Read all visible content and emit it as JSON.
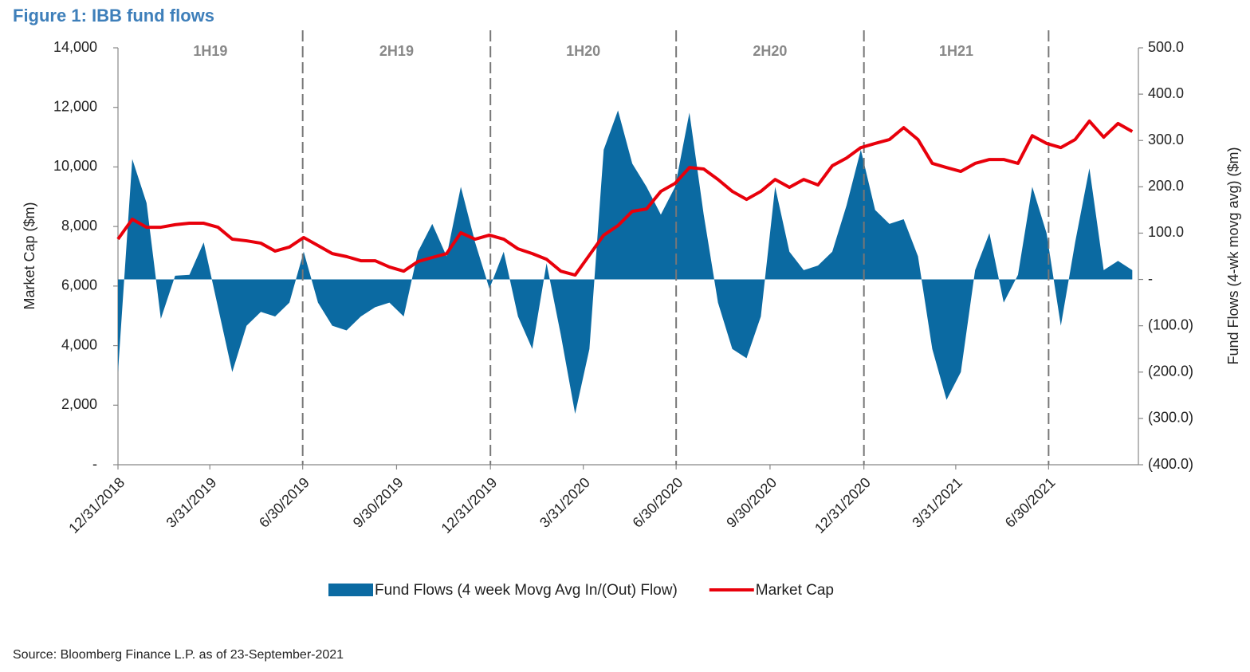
{
  "chart_data": {
    "type": "area-line",
    "title": "Figure 1: IBB fund flows",
    "source": "Source: Bloomberg Finance L.P. as of 23-September-2021",
    "y_label": "Market Cap ($m)",
    "y2_label": "Fund Flows (4-wk movg avg) ($m)",
    "xlim": [
      0,
      1000
    ],
    "xticks": [
      {
        "value": 0,
        "label": "12/31/2018"
      },
      {
        "value": 90,
        "label": "3/31/2019"
      },
      {
        "value": 181,
        "label": "6/30/2019"
      },
      {
        "value": 273,
        "label": "9/30/2019"
      },
      {
        "value": 365,
        "label": "12/31/2019"
      },
      {
        "value": 456,
        "label": "3/31/2020"
      },
      {
        "value": 547,
        "label": "6/30/2020"
      },
      {
        "value": 639,
        "label": "9/30/2020"
      },
      {
        "value": 731,
        "label": "12/31/2020"
      },
      {
        "value": 821,
        "label": "3/31/2021"
      },
      {
        "value": 912,
        "label": "6/30/2021"
      }
    ],
    "ylim": [
      0,
      14000
    ],
    "yticks": [
      {
        "value": 0,
        "label": "-"
      },
      {
        "value": 2000,
        "label": "2,000"
      },
      {
        "value": 4000,
        "label": "4,000"
      },
      {
        "value": 6000,
        "label": "6,000"
      },
      {
        "value": 8000,
        "label": "8,000"
      },
      {
        "value": 10000,
        "label": "10,000"
      },
      {
        "value": 12000,
        "label": "12,000"
      },
      {
        "value": 14000,
        "label": "14,000"
      }
    ],
    "y2lim": [
      -400,
      500
    ],
    "y2ticks": [
      {
        "value": -400,
        "label": "(400.0)"
      },
      {
        "value": -300,
        "label": "(300.0)"
      },
      {
        "value": -200,
        "label": "(200.0)"
      },
      {
        "value": -100,
        "label": "(100.0)"
      },
      {
        "value": 0,
        "label": "-"
      },
      {
        "value": 100,
        "label": "100.0"
      },
      {
        "value": 200,
        "label": "200.0"
      },
      {
        "value": 300,
        "label": "300.0"
      },
      {
        "value": 400,
        "label": "400.0"
      },
      {
        "value": 500,
        "label": "500.0"
      }
    ],
    "periods": [
      {
        "label": "1H19",
        "start": 0,
        "end": 181
      },
      {
        "label": "2H19",
        "start": 181,
        "end": 365
      },
      {
        "label": "1H20",
        "start": 365,
        "end": 547
      },
      {
        "label": "2H20",
        "start": 547,
        "end": 731
      },
      {
        "label": "1H21",
        "start": 731,
        "end": 912
      }
    ],
    "x": [
      0,
      14,
      28,
      42,
      56,
      70,
      84,
      98,
      112,
      126,
      140,
      154,
      168,
      182,
      196,
      210,
      224,
      238,
      252,
      266,
      280,
      294,
      308,
      322,
      336,
      350,
      364,
      378,
      392,
      406,
      420,
      434,
      448,
      462,
      476,
      490,
      504,
      518,
      532,
      546,
      560,
      574,
      588,
      602,
      616,
      630,
      644,
      658,
      672,
      686,
      700,
      714,
      728,
      742,
      756,
      770,
      784,
      798,
      812,
      826,
      840,
      854,
      868,
      882,
      896,
      910,
      924,
      938,
      952,
      966,
      980,
      994
    ],
    "series": [
      {
        "name": "Fund Flows (4 week Movg Avg In/(Out) Flow)",
        "color": "#0b6aa2",
        "kind": "area",
        "axis": "y2",
        "values": [
          -200,
          260,
          165,
          -85,
          8,
          10,
          80,
          -60,
          -200,
          -100,
          -70,
          -80,
          -50,
          60,
          -50,
          -100,
          -110,
          -80,
          -60,
          -50,
          -80,
          60,
          120,
          50,
          200,
          80,
          -20,
          60,
          -80,
          -150,
          35,
          -120,
          -290,
          -150,
          280,
          365,
          250,
          200,
          140,
          200,
          360,
          140,
          -50,
          -150,
          -170,
          -80,
          200,
          60,
          20,
          30,
          60,
          160,
          280,
          150,
          120,
          130,
          50,
          -150,
          -260,
          -200,
          20,
          100,
          -50,
          10,
          200,
          100,
          -100,
          80,
          240,
          20,
          40,
          20
        ]
      },
      {
        "name": "Market Cap",
        "color": "#e8000b",
        "kind": "line",
        "axis": "y",
        "values": [
          7575,
          8245,
          7975,
          7975,
          8060,
          8110,
          8110,
          7975,
          7575,
          7520,
          7440,
          7175,
          7310,
          7630,
          7360,
          7090,
          6990,
          6850,
          6850,
          6640,
          6500,
          6825,
          6960,
          7090,
          7790,
          7575,
          7710,
          7575,
          7250,
          7090,
          6900,
          6500,
          6370,
          7040,
          7710,
          8030,
          8510,
          8590,
          9180,
          9450,
          9980,
          9930,
          9580,
          9180,
          8910,
          9180,
          9580,
          9315,
          9580,
          9395,
          10040,
          10300,
          10650,
          10790,
          10920,
          11320,
          10920,
          10120,
          9980,
          9850,
          10120,
          10250,
          10250,
          10120,
          11050,
          10790,
          10650,
          10920,
          11540,
          11000,
          11460,
          11190
        ]
      }
    ]
  }
}
